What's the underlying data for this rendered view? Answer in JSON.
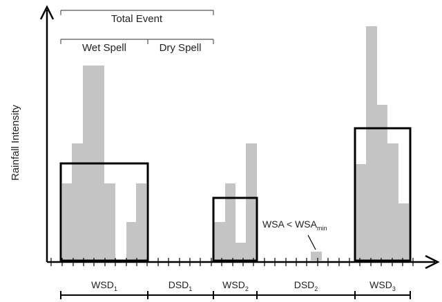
{
  "diagram": {
    "y_axis_label": "Rainfall Intensity",
    "annotations": {
      "total_event": "Total Event",
      "wet_spell": "Wet Spell",
      "dry_spell": "Dry Spell",
      "wsa_note": "WSA < WSA",
      "wsa_note_sub": "min"
    },
    "segments": [
      {
        "main": "WSD",
        "sub": "1"
      },
      {
        "main": "DSD",
        "sub": "1"
      },
      {
        "main": "WSD",
        "sub": "2"
      },
      {
        "main": "DSD",
        "sub": "2"
      },
      {
        "main": "WSD",
        "sub": "3"
      }
    ],
    "colors": {
      "bars": "#c4c4c4",
      "lines": "#000000"
    }
  }
}
